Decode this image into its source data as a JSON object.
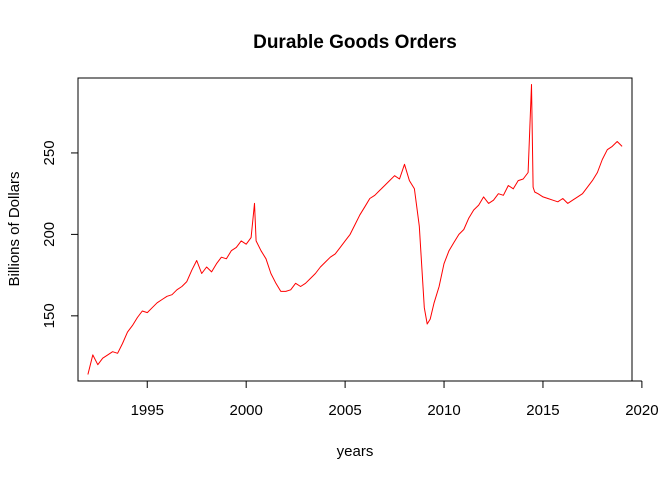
{
  "chart_data": {
    "type": "line",
    "title": "Durable Goods Orders",
    "xlabel": "years",
    "ylabel": "Billions of Dollars",
    "xlim": [
      1991.5,
      2019.5
    ],
    "ylim": [
      110,
      296
    ],
    "x_ticks": [
      1995,
      2000,
      2005,
      2010,
      2015,
      2020
    ],
    "x_tick_labels": [
      "1995",
      "2000",
      "2005",
      "2010",
      "2015",
      "2020"
    ],
    "y_ticks": [
      150,
      200,
      250
    ],
    "y_tick_labels": [
      "150",
      "200",
      "250"
    ],
    "grid": false,
    "series": [
      {
        "color": "#ff0000",
        "x": [
          1992.0,
          1992.25,
          1992.5,
          1992.75,
          1993.0,
          1993.25,
          1993.5,
          1993.75,
          1994.0,
          1994.25,
          1994.5,
          1994.75,
          1995.0,
          1995.25,
          1995.5,
          1995.75,
          1996.0,
          1996.25,
          1996.5,
          1996.75,
          1997.0,
          1997.25,
          1997.5,
          1997.75,
          1998.0,
          1998.25,
          1998.5,
          1998.75,
          1999.0,
          1999.25,
          1999.5,
          1999.75,
          2000.0,
          2000.25,
          2000.42,
          2000.5,
          2000.75,
          2001.0,
          2001.25,
          2001.5,
          2001.75,
          2002.0,
          2002.25,
          2002.5,
          2002.75,
          2003.0,
          2003.25,
          2003.5,
          2003.75,
          2004.0,
          2004.25,
          2004.5,
          2004.75,
          2005.0,
          2005.25,
          2005.5,
          2005.75,
          2006.0,
          2006.25,
          2006.5,
          2006.75,
          2007.0,
          2007.25,
          2007.5,
          2007.75,
          2008.0,
          2008.25,
          2008.5,
          2008.75,
          2009.0,
          2009.15,
          2009.3,
          2009.5,
          2009.75,
          2010.0,
          2010.25,
          2010.5,
          2010.75,
          2011.0,
          2011.25,
          2011.5,
          2011.75,
          2012.0,
          2012.25,
          2012.5,
          2012.75,
          2013.0,
          2013.25,
          2013.5,
          2013.75,
          2014.0,
          2014.25,
          2014.42,
          2014.5,
          2014.58,
          2014.75,
          2015.0,
          2015.25,
          2015.5,
          2015.75,
          2016.0,
          2016.25,
          2016.5,
          2016.75,
          2017.0,
          2017.25,
          2017.5,
          2017.75,
          2018.0,
          2018.25,
          2018.5,
          2018.75,
          2019.0
        ],
        "y": [
          114,
          126,
          120,
          124,
          126,
          128,
          127,
          133,
          140,
          144,
          149,
          153,
          152,
          155,
          158,
          160,
          162,
          163,
          166,
          168,
          171,
          178,
          184,
          176,
          180,
          177,
          182,
          186,
          185,
          190,
          192,
          196,
          194,
          198,
          219,
          196,
          190,
          185,
          176,
          170,
          165,
          165,
          166,
          170,
          168,
          170,
          173,
          176,
          180,
          183,
          186,
          188,
          192,
          196,
          200,
          206,
          212,
          217,
          222,
          224,
          227,
          230,
          233,
          236,
          234,
          243,
          233,
          228,
          205,
          155,
          145,
          148,
          158,
          168,
          182,
          190,
          195,
          200,
          203,
          210,
          215,
          218,
          223,
          219,
          221,
          225,
          224,
          230,
          228,
          233,
          234,
          238,
          292,
          229,
          226,
          225,
          223,
          222,
          221,
          220,
          222,
          219,
          221,
          223,
          225,
          229,
          233,
          238,
          246,
          252,
          254,
          257,
          254
        ]
      }
    ]
  }
}
